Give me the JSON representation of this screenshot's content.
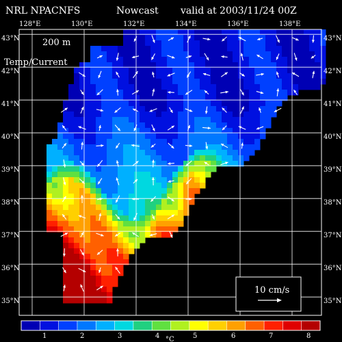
{
  "header": {
    "model": "NRL NPACNFS",
    "product": "Nowcast",
    "valid": "valid at 2003/11/24 00Z"
  },
  "map": {
    "depth": "200 m",
    "fields": "Temp/Current",
    "lon_labels": [
      "128°E",
      "130°E",
      "132°E",
      "134°E",
      "136°E",
      "138°E"
    ],
    "lat_labels": [
      "43°N",
      "42°N",
      "41°N",
      "40°N",
      "39°N",
      "38°N",
      "37°N",
      "36°N",
      "35°N"
    ],
    "scale_label": "10 cm/s",
    "land_color": "#000000",
    "grid_color": "#ffffff",
    "vector_color": "#ffffff"
  },
  "colorbar": {
    "ticks": [
      "1",
      "2",
      "3",
      "4",
      "5",
      "6",
      "7",
      "8"
    ],
    "unit": "°C",
    "colors": [
      "#0000b4",
      "#0010e0",
      "#0040ff",
      "#0078ff",
      "#00b0ff",
      "#00d8e0",
      "#20d080",
      "#60e040",
      "#b0f020",
      "#ffff00",
      "#ffd000",
      "#ffa000",
      "#ff6000",
      "#ff2000",
      "#e00000",
      "#b40000"
    ]
  }
}
